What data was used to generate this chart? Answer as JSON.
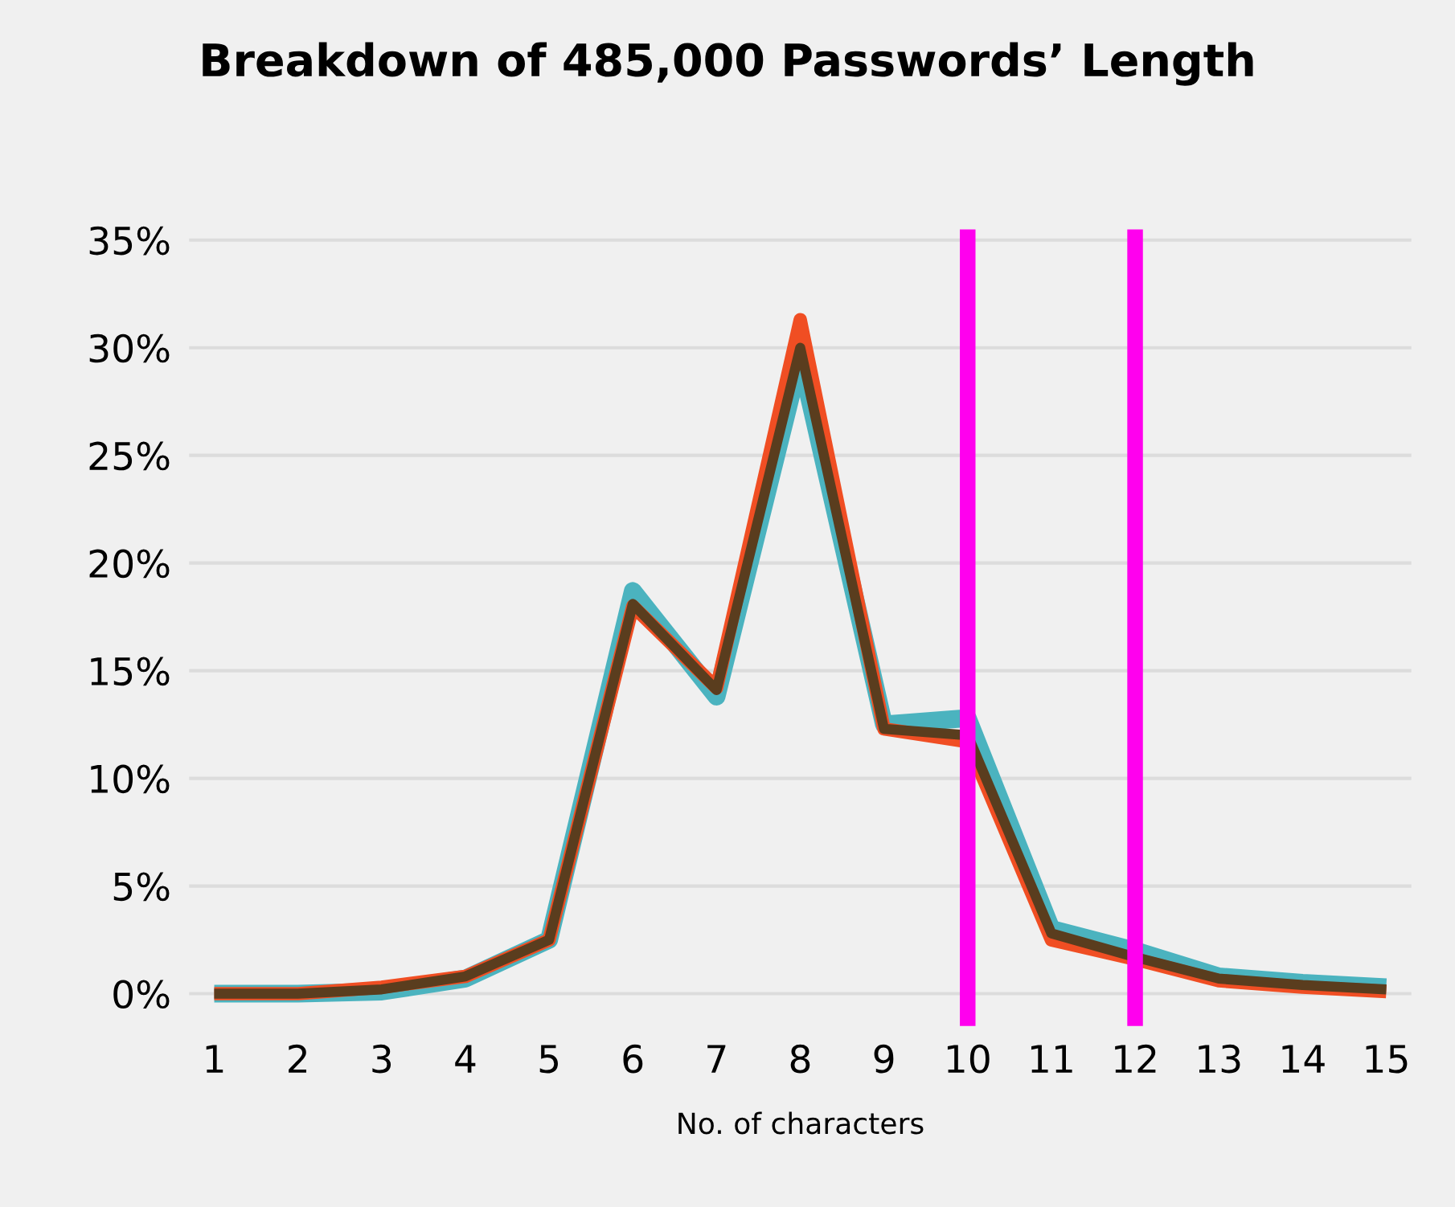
{
  "chart_data": {
    "type": "line",
    "title": "Breakdown of 485,000 Passwords’ Length",
    "xlabel": "No. of characters",
    "x": [
      1,
      2,
      3,
      4,
      5,
      6,
      7,
      8,
      9,
      10,
      11,
      12,
      13,
      14,
      15
    ],
    "series": [
      {
        "color": "#4bb3bf",
        "values": [
          0,
          0,
          0.1,
          0.7,
          2.5,
          18.7,
          13.8,
          29.5,
          12.5,
          12.8,
          3,
          2,
          0.8,
          0.5,
          0.3
        ]
      },
      {
        "color": "#f04e23",
        "values": [
          0,
          0,
          0.3,
          0.8,
          2.5,
          18,
          14.2,
          31.3,
          12.3,
          11.7,
          2.5,
          1.6,
          0.6,
          0.3,
          0.1
        ]
      },
      {
        "color": "#5a3d1e",
        "values": [
          0,
          0,
          0.2,
          0.8,
          2.5,
          18.1,
          14.1,
          30,
          12.3,
          12,
          2.8,
          1.7,
          0.7,
          0.4,
          0.2
        ]
      }
    ],
    "xlim": [
      0.7,
      15.3
    ],
    "xticks": [
      1,
      2,
      3,
      4,
      5,
      6,
      7,
      8,
      9,
      10,
      11,
      12,
      13,
      14,
      15
    ],
    "ylim": [
      -1.5,
      35.5
    ],
    "yticks": [
      {
        "value": 0,
        "label": "0%"
      },
      {
        "value": 5,
        "label": "5%"
      },
      {
        "value": 10,
        "label": "10%"
      },
      {
        "value": 15,
        "label": "15%"
      },
      {
        "value": 20,
        "label": "20%"
      },
      {
        "value": 25,
        "label": "25%"
      },
      {
        "value": 30,
        "label": "30%"
      },
      {
        "value": 35,
        "label": "35%"
      }
    ],
    "grid": "y",
    "legend": false,
    "marker": "none",
    "line_style": "solid",
    "ref_lines": [
      {
        "axis": "x",
        "value": 10,
        "color": "#ff00ee"
      },
      {
        "axis": "x",
        "value": 12,
        "color": "#ff00ee"
      }
    ]
  }
}
